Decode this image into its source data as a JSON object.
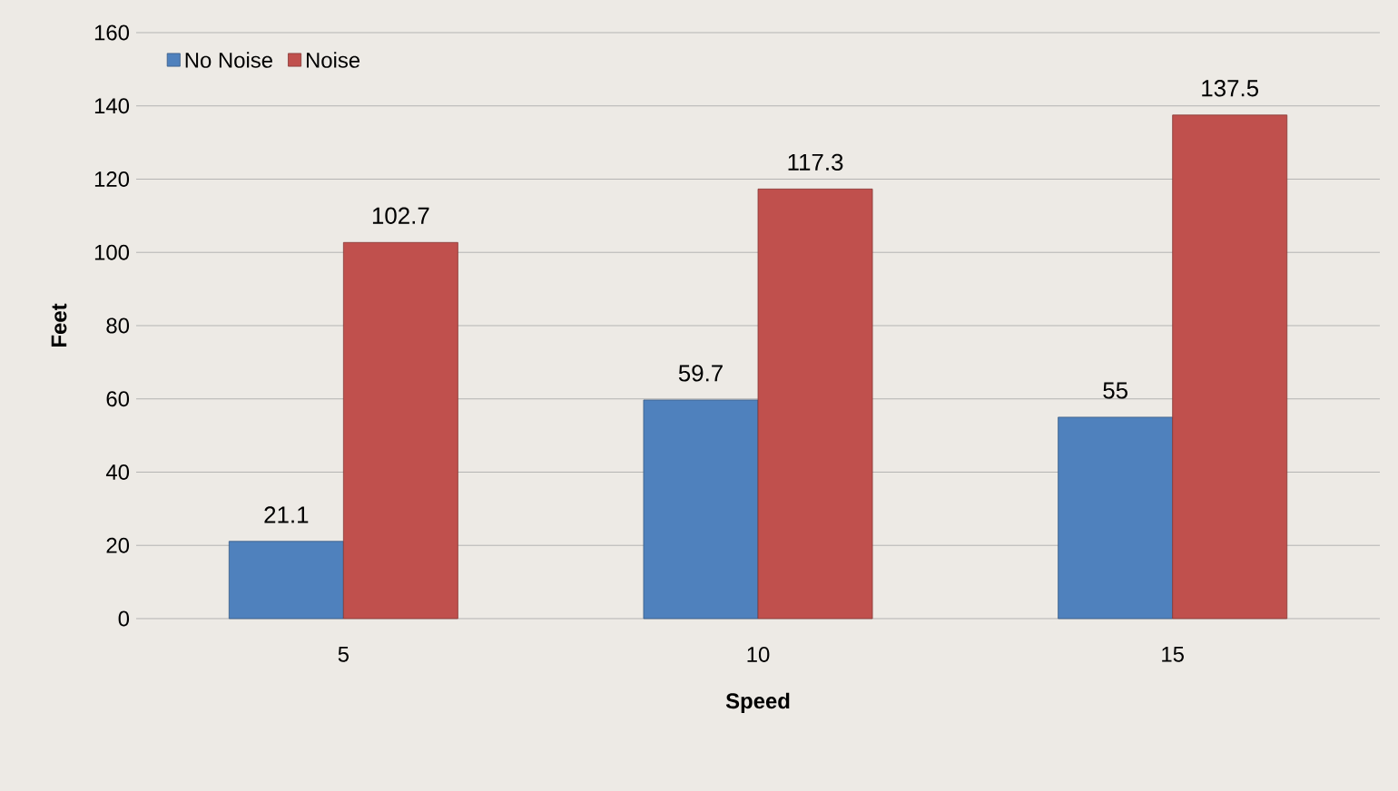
{
  "chart_data": {
    "type": "bar",
    "xlabel": "Speed",
    "ylabel": "Feet",
    "categories": [
      "5",
      "10",
      "15"
    ],
    "series": [
      {
        "name": "No Noise",
        "color": "#4f81bd",
        "values": [
          21.1,
          59.7,
          55
        ]
      },
      {
        "name": "Noise",
        "color": "#c0504d",
        "values": [
          102.7,
          117.3,
          137.5
        ]
      }
    ],
    "ylim": [
      0,
      160
    ],
    "yticks": [
      0,
      20,
      40,
      60,
      80,
      100,
      120,
      140,
      160
    ],
    "grid": "y",
    "legend": "top left",
    "data_labels": true
  }
}
